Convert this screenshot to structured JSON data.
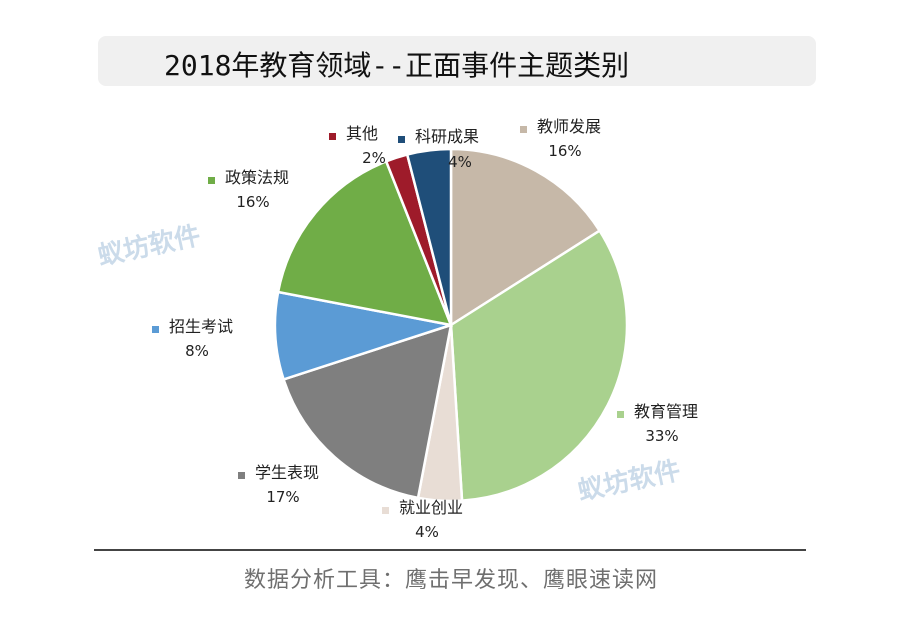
{
  "title": "2018年教育领域--正面事件主题类别",
  "footer": "数据分析工具：鹰击早发现、鹰眼速读网",
  "watermark": "蚁坊软件",
  "chart_data": {
    "type": "pie",
    "title": "2018年教育领域--正面事件主题类别",
    "slices": [
      {
        "label": "教师发展",
        "value": 16,
        "pct_text": "16%",
        "color": "#c6b8a8"
      },
      {
        "label": "教育管理",
        "value": 33,
        "pct_text": "33%",
        "color": "#a9d18e"
      },
      {
        "label": "就业创业",
        "value": 4,
        "pct_text": "4%",
        "color": "#e8ddd5"
      },
      {
        "label": "学生表现",
        "value": 17,
        "pct_text": "17%",
        "color": "#7f7f7f"
      },
      {
        "label": "招生考试",
        "value": 8,
        "pct_text": "8%",
        "color": "#5b9bd5"
      },
      {
        "label": "政策法规",
        "value": 16,
        "pct_text": "16%",
        "color": "#70ad47"
      },
      {
        "label": "其他",
        "value": 2,
        "pct_text": "2%",
        "color": "#9e1b2a"
      },
      {
        "label": "科研成果",
        "value": 4,
        "pct_text": "4%",
        "color": "#1f4e79"
      }
    ]
  }
}
